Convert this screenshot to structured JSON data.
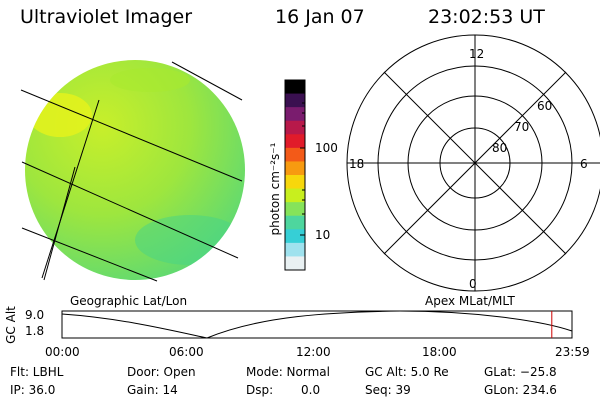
{
  "header": {
    "instrument": "Ultraviolet Imager",
    "date": "16 Jan 07",
    "time": "23:02:53 UT"
  },
  "colorbar": {
    "unit_label": "photon cm⁻²s⁻¹",
    "ticks": [
      "100",
      "10"
    ],
    "colors": [
      "#000000",
      "#3a1050",
      "#7a1c6e",
      "#b8194a",
      "#e11b2a",
      "#f35a18",
      "#f79a10",
      "#f7d70c",
      "#c8ef1e",
      "#86e35a",
      "#4ed69e",
      "#36cfd6",
      "#9fe2ee",
      "#e9f1f3"
    ]
  },
  "left_panel": {
    "caption": "Geographic Lat/Lon",
    "disk_color": "#86e35a"
  },
  "right_panel": {
    "caption": "Apex MLat/MLT",
    "mlt_labels": [
      "12",
      "18",
      "6",
      "0"
    ],
    "mlat_labels": [
      "60",
      "70",
      "80"
    ]
  },
  "altitude_plot": {
    "ylabel": "GC Alt",
    "y_ticks": [
      "9.0",
      "1.8"
    ],
    "x_ticks": [
      "00:00",
      "06:00",
      "12:00",
      "18:00",
      "23:59"
    ],
    "marker_color": "#cc0000",
    "marker_time_hours": 23.05
  },
  "info": {
    "flt": "Flt: LBHL",
    "ip": "IP: 36.0",
    "door": "Door: Open",
    "gain": "Gain: 14",
    "mode": "Mode: Normal",
    "dsp_label": "Dsp:",
    "dsp_value": "0.0",
    "gc_alt": "GC Alt: 5.0 Re",
    "seq": "Seq: 39",
    "glat": "GLat: −25.8",
    "glon": "GLon: 234.6"
  }
}
